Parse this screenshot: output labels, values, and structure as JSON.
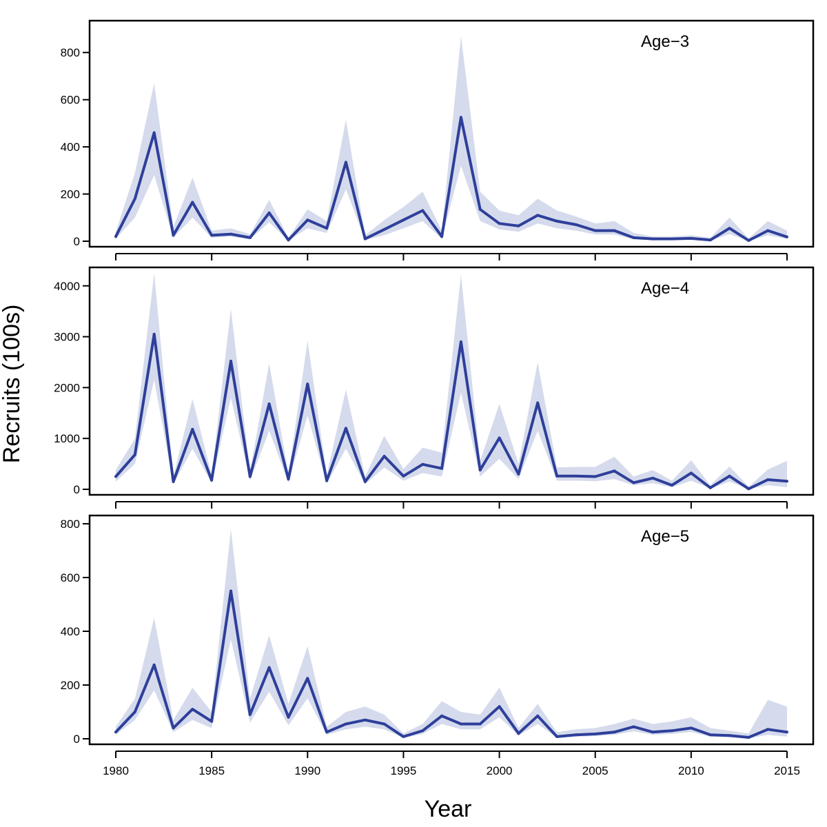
{
  "figure": {
    "xlabel": "Year",
    "ylabel": "Recruits (100s)"
  },
  "style": {
    "line_color": "#2e3f9a",
    "band_color": "#d5dbec"
  },
  "chart_data": [
    {
      "type": "line",
      "label": "Age−3",
      "xlim": [
        1980,
        2015
      ],
      "ylim": [
        0,
        900
      ],
      "yticks": [
        0,
        200,
        400,
        600,
        800
      ],
      "xticks": [
        1980,
        1985,
        1990,
        1995,
        2000,
        2005,
        2010,
        2015
      ],
      "x": [
        1980,
        1981,
        1982,
        1983,
        1984,
        1985,
        1986,
        1987,
        1988,
        1989,
        1990,
        1991,
        1992,
        1993,
        1994,
        1995,
        1996,
        1997,
        1998,
        1999,
        2000,
        2001,
        2002,
        2003,
        2004,
        2005,
        2006,
        2007,
        2008,
        2009,
        2010,
        2011,
        2012,
        2013,
        2014,
        2015
      ],
      "y": [
        20,
        180,
        460,
        25,
        165,
        25,
        30,
        15,
        120,
        5,
        90,
        55,
        335,
        10,
        50,
        90,
        130,
        20,
        525,
        135,
        75,
        65,
        110,
        85,
        70,
        45,
        45,
        15,
        10,
        10,
        12,
        5,
        55,
        3,
        45,
        18
      ],
      "lower": [
        10,
        100,
        280,
        15,
        100,
        15,
        20,
        8,
        80,
        2,
        55,
        35,
        220,
        5,
        25,
        55,
        85,
        10,
        320,
        85,
        50,
        40,
        75,
        55,
        45,
        28,
        28,
        8,
        5,
        5,
        6,
        2,
        30,
        1,
        25,
        10
      ],
      "upper": [
        40,
        290,
        670,
        60,
        270,
        45,
        55,
        30,
        175,
        15,
        135,
        85,
        515,
        25,
        90,
        145,
        210,
        45,
        870,
        210,
        130,
        110,
        180,
        130,
        105,
        75,
        85,
        35,
        20,
        20,
        25,
        15,
        100,
        12,
        85,
        45
      ]
    },
    {
      "type": "line",
      "label": "Age−4",
      "xlim": [
        1980,
        2015
      ],
      "ylim": [
        0,
        4200
      ],
      "yticks": [
        0,
        1000,
        2000,
        3000,
        4000
      ],
      "xticks": [
        1980,
        1985,
        1990,
        1995,
        2000,
        2005,
        2010,
        2015
      ],
      "x": [
        1980,
        1981,
        1982,
        1983,
        1984,
        1985,
        1986,
        1987,
        1988,
        1989,
        1990,
        1991,
        1992,
        1993,
        1994,
        1995,
        1996,
        1997,
        1998,
        1999,
        2000,
        2001,
        2002,
        2003,
        2004,
        2005,
        2006,
        2007,
        2008,
        2009,
        2010,
        2011,
        2012,
        2013,
        2014,
        2015
      ],
      "y": [
        250,
        680,
        3050,
        150,
        1180,
        180,
        2520,
        250,
        1680,
        200,
        2070,
        170,
        1200,
        150,
        650,
        260,
        490,
        410,
        2900,
        380,
        1010,
        300,
        1700,
        260,
        260,
        250,
        360,
        130,
        220,
        80,
        320,
        30,
        260,
        10,
        190,
        160
      ],
      "lower": [
        150,
        500,
        2150,
        100,
        800,
        120,
        1800,
        170,
        1150,
        130,
        1450,
        110,
        800,
        100,
        430,
        170,
        320,
        250,
        1900,
        250,
        600,
        200,
        1150,
        170,
        170,
        160,
        200,
        80,
        120,
        40,
        170,
        15,
        150,
        5,
        80,
        40
      ],
      "upper": [
        380,
        1000,
        4250,
        250,
        1780,
        280,
        3550,
        350,
        2480,
        300,
        2920,
        280,
        1960,
        250,
        1050,
        400,
        820,
        720,
        4220,
        560,
        1680,
        500,
        2500,
        430,
        440,
        440,
        640,
        250,
        380,
        170,
        570,
        80,
        450,
        50,
        390,
        560
      ]
    },
    {
      "type": "line",
      "label": "Age−5",
      "xlim": [
        1980,
        2015
      ],
      "ylim": [
        0,
        800
      ],
      "yticks": [
        0,
        200,
        400,
        600,
        800
      ],
      "xticks": [
        1980,
        1985,
        1990,
        1995,
        2000,
        2005,
        2010,
        2015
      ],
      "x": [
        1980,
        1981,
        1982,
        1983,
        1984,
        1985,
        1986,
        1987,
        1988,
        1989,
        1990,
        1991,
        1992,
        1993,
        1994,
        1995,
        1996,
        1997,
        1998,
        1999,
        2000,
        2001,
        2002,
        2003,
        2004,
        2005,
        2006,
        2007,
        2008,
        2009,
        2010,
        2011,
        2012,
        2013,
        2014,
        2015
      ],
      "y": [
        25,
        100,
        275,
        40,
        110,
        65,
        550,
        90,
        265,
        80,
        225,
        25,
        55,
        70,
        55,
        8,
        30,
        85,
        55,
        55,
        120,
        20,
        85,
        8,
        15,
        18,
        25,
        45,
        25,
        30,
        40,
        15,
        12,
        5,
        35,
        25
      ],
      "lower": [
        15,
        70,
        180,
        25,
        70,
        40,
        370,
        60,
        175,
        50,
        150,
        15,
        35,
        45,
        35,
        3,
        18,
        55,
        35,
        35,
        80,
        12,
        55,
        4,
        8,
        10,
        15,
        28,
        15,
        18,
        25,
        8,
        6,
        2,
        15,
        8
      ],
      "upper": [
        45,
        150,
        450,
        70,
        190,
        100,
        780,
        150,
        385,
        130,
        345,
        45,
        100,
        120,
        90,
        20,
        55,
        140,
        100,
        90,
        190,
        40,
        130,
        25,
        35,
        40,
        55,
        75,
        55,
        65,
        80,
        40,
        30,
        20,
        145,
        120
      ]
    }
  ]
}
